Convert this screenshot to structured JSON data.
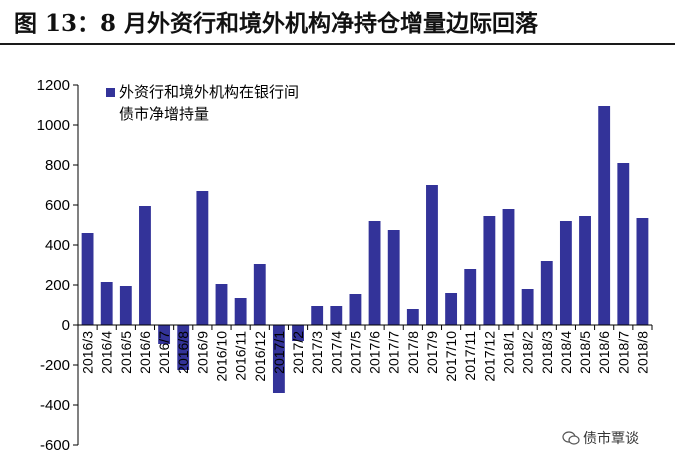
{
  "title": "图 13：8 月外资行和境外机构净持仓增量边际回落",
  "watermark": "债市覃谈",
  "colors": {
    "bar": "#333399",
    "axis": "#000000",
    "text": "#000000"
  },
  "chart_data": {
    "type": "bar",
    "title": "",
    "xlabel": "",
    "ylabel": "",
    "ylim": [
      -600,
      1200
    ],
    "yticks": [
      -600,
      -400,
      -200,
      0,
      200,
      400,
      600,
      800,
      1000,
      1200
    ],
    "grid": false,
    "legend": {
      "position": "top-left",
      "label_lines": [
        "外资行和境外机构在银行间",
        "债市净增持量"
      ]
    },
    "categories": [
      "2016/3",
      "2016/4",
      "2016/5",
      "2016/6",
      "2016/7",
      "2016/8",
      "2016/9",
      "2016/10",
      "2016/11",
      "2016/12",
      "2017/1",
      "2017/2",
      "2017/3",
      "2017/4",
      "2017/5",
      "2017/6",
      "2017/7",
      "2017/8",
      "2017/9",
      "2017/10",
      "2017/11",
      "2017/12",
      "2018/1",
      "2018/2",
      "2018/3",
      "2018/4",
      "2018/5",
      "2018/6",
      "2018/7",
      "2018/8"
    ],
    "series": [
      {
        "name": "外资行和境外机构在银行间债市净增持量",
        "values": [
          460,
          215,
          195,
          595,
          -95,
          -225,
          670,
          205,
          135,
          305,
          -340,
          -80,
          95,
          95,
          155,
          520,
          475,
          80,
          700,
          160,
          280,
          545,
          580,
          180,
          320,
          520,
          545,
          1095,
          810,
          535
        ]
      }
    ]
  }
}
